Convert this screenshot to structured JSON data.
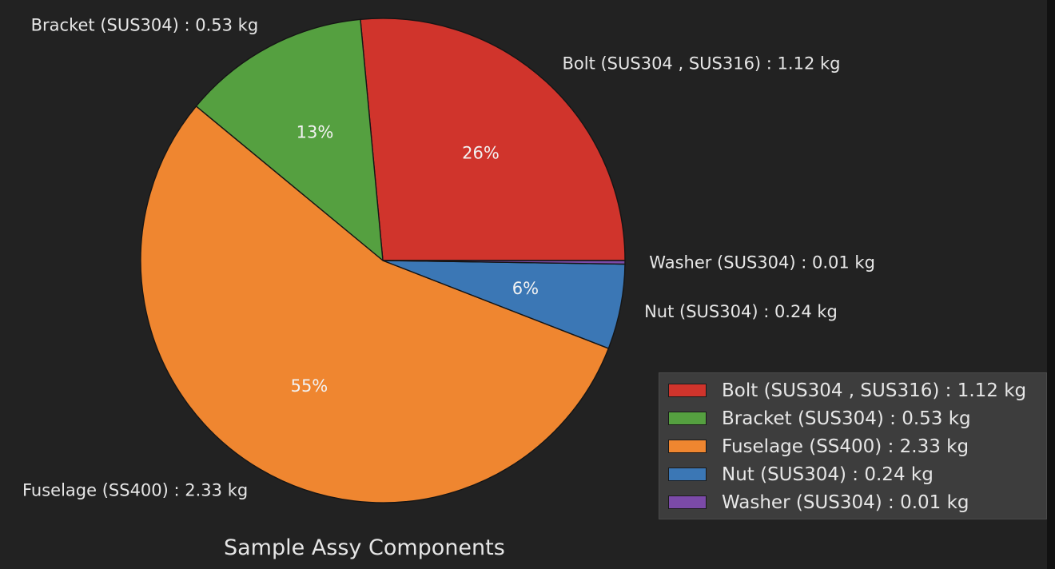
{
  "chart_data": {
    "type": "pie",
    "title": "Sample Assy Components",
    "unit": "kg",
    "slices": [
      {
        "label": "Bolt (SUS304 , SUS316) : 1.12 kg",
        "value": 1.12,
        "pct_label": "26%",
        "color": "#d0342c"
      },
      {
        "label": "Bracket (SUS304) : 0.53 kg",
        "value": 0.53,
        "pct_label": "13%",
        "color": "#55a040"
      },
      {
        "label": "Fuselage (SS400) : 2.33 kg",
        "value": 2.33,
        "pct_label": "55%",
        "color": "#ef8630"
      },
      {
        "label": "Nut (SUS304) : 0.24 kg",
        "value": 0.24,
        "pct_label": "6%",
        "color": "#3b77b5"
      },
      {
        "label": "Washer (SUS304) : 0.01 kg",
        "value": 0.01,
        "pct_label": "",
        "color": "#7b4aa8"
      }
    ],
    "legend": {
      "placement": "lower-right",
      "entries": [
        "Bolt (SUS304 , SUS316) : 1.12 kg",
        "Bracket (SUS304) : 0.53 kg",
        "Fuselage (SS400) : 2.33 kg",
        "Nut (SUS304) : 0.24 kg",
        "Washer (SUS304) : 0.01 kg"
      ]
    }
  }
}
